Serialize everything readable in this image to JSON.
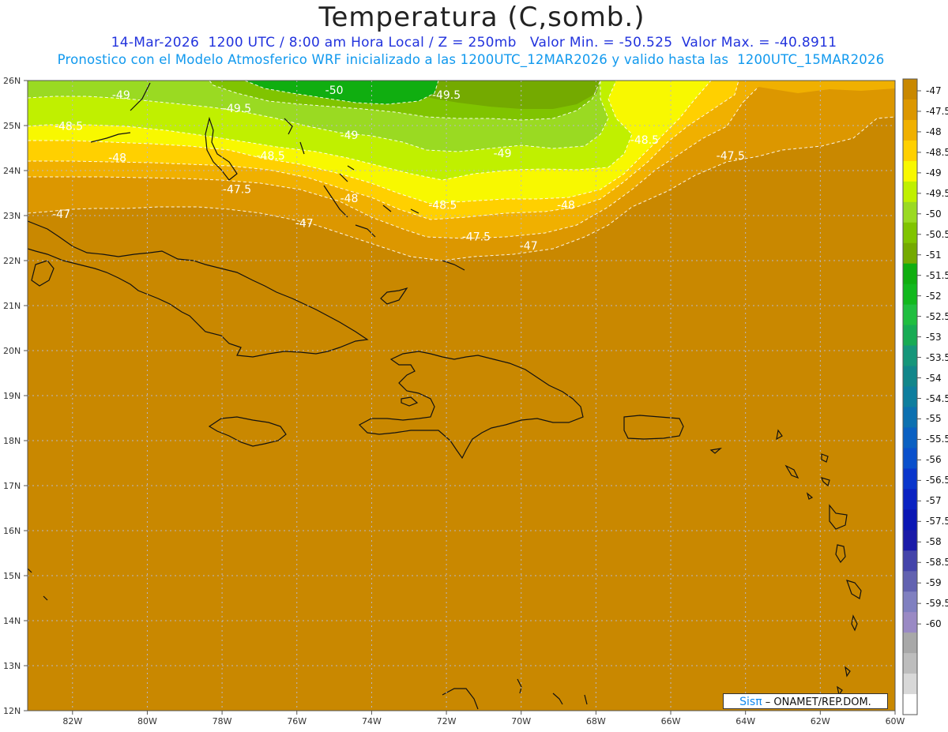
{
  "title": "Temperatura (C,somb.)",
  "subtitle1": "14-Mar-2026  1200 UTC / 8:00 am Hora Local / Z = 250mb   Valor Min. = -50.525  Valor Max. = -40.8911",
  "subtitle2": "Pronostico con el Modelo Atmosferico WRF inicializado a las 1200UTC_12MAR2026 y valido hasta las  1200UTC_15MAR2026",
  "credit": {
    "logo": "Sisπ",
    "text": "– ONAMET/REP.DOM."
  },
  "map": {
    "lat_ticks": [
      "26N",
      "25N",
      "24N",
      "23N",
      "22N",
      "21N",
      "20N",
      "19N",
      "18N",
      "17N",
      "16N",
      "15N",
      "14N",
      "13N",
      "12N"
    ],
    "lon_ticks": [
      "82W",
      "80W",
      "78W",
      "76W",
      "74W",
      "72W",
      "70W",
      "68W",
      "66W",
      "64W",
      "62W",
      "60W"
    ],
    "contour_labels": [
      {
        "text": "-50",
        "lon": -75.0,
        "lat": 25.7
      },
      {
        "text": "-49.5",
        "lon": -72.0,
        "lat": 25.6
      },
      {
        "text": "-49",
        "lon": -80.7,
        "lat": 25.6
      },
      {
        "text": "-49.5",
        "lon": -77.6,
        "lat": 25.3
      },
      {
        "text": "-49",
        "lon": -74.6,
        "lat": 24.7
      },
      {
        "text": "-48.5",
        "lon": -66.7,
        "lat": 24.6
      },
      {
        "text": "-48.5",
        "lon": -82.1,
        "lat": 24.9
      },
      {
        "text": "-49",
        "lon": -70.5,
        "lat": 24.3
      },
      {
        "text": "-48",
        "lon": -80.8,
        "lat": 24.2
      },
      {
        "text": "-48.5",
        "lon": -76.7,
        "lat": 24.25
      },
      {
        "text": "-47.5",
        "lon": -64.4,
        "lat": 24.25
      },
      {
        "text": "-47.5",
        "lon": -77.6,
        "lat": 23.5
      },
      {
        "text": "-48",
        "lon": -74.6,
        "lat": 23.3
      },
      {
        "text": "-48.5",
        "lon": -72.1,
        "lat": 23.15
      },
      {
        "text": "-48",
        "lon": -68.8,
        "lat": 23.15
      },
      {
        "text": "-47",
        "lon": -82.3,
        "lat": 22.95
      },
      {
        "text": "-47",
        "lon": -75.8,
        "lat": 22.75
      },
      {
        "text": "-47.5",
        "lon": -71.2,
        "lat": 22.45
      },
      {
        "text": "-47",
        "lon": -69.8,
        "lat": 22.25
      }
    ]
  },
  "colorbar": {
    "labels": [
      "-47",
      "-47.5",
      "-48",
      "-48.5",
      "-49",
      "-49.5",
      "-50",
      "-50.5",
      "-51",
      "-51.5",
      "-52",
      "-52.5",
      "-53",
      "-53.5",
      "-54",
      "-54.5",
      "-55",
      "-55.5",
      "-56",
      "-56.5",
      "-57",
      "-57.5",
      "-58",
      "-58.5",
      "-59",
      "-59.5",
      "-60"
    ],
    "colors": [
      "#c98800",
      "#dc9700",
      "#f0b000",
      "#ffd000",
      "#f8f800",
      "#c0f000",
      "#9ada22",
      "#80c400",
      "#74aa00",
      "#10ae10",
      "#12b81e",
      "#20be40",
      "#18ab54",
      "#16967a",
      "#12868a",
      "#0e7e9e",
      "#0c70b0",
      "#0a60c2",
      "#0a50cc",
      "#0a36cc",
      "#0a22c2",
      "#0a16b4",
      "#1a1aa8",
      "#4444aa",
      "#6262b0",
      "#8080c0",
      "#9a8ac4",
      "#a8a8a8",
      "#bdbdbd",
      "#d8d8d8",
      "#ffffff"
    ]
  },
  "colors": {
    "warm": "#c98800",
    "band_475": "#dc9700",
    "band_48": "#f0b000",
    "band_485": "#ffd000",
    "band_49": "#f8f800",
    "band_495": "#c0f000",
    "band_50": "#9ada22",
    "band_505": "#80c400",
    "band_51": "#74aa00",
    "band_515": "#10ae10"
  }
}
